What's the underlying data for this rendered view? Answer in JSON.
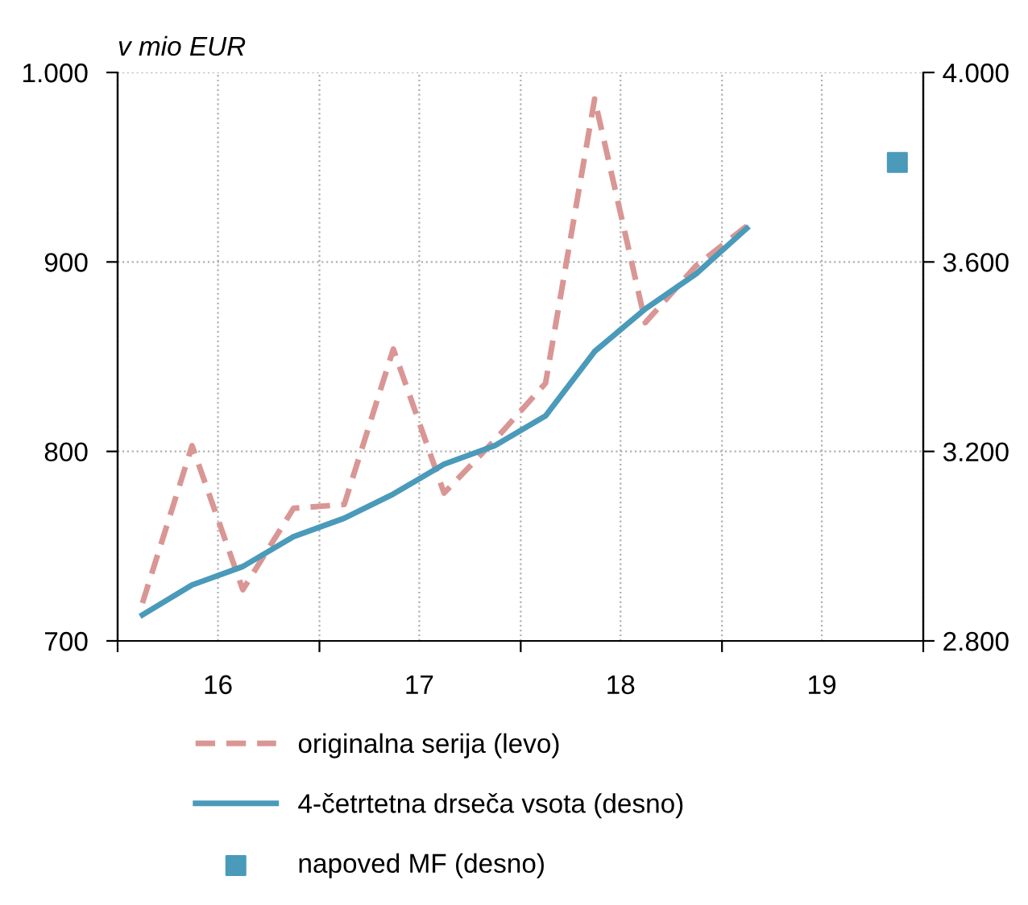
{
  "chart_data": {
    "type": "line",
    "ylabel": "v mio EUR",
    "x": [
      "2016-02-15",
      "2016-05-15",
      "2016-08-15",
      "2016-11-15",
      "2017-02-15",
      "2017-05-15",
      "2017-08-15",
      "2017-11-15",
      "2018-02-15",
      "2018-05-15",
      "2018-08-15",
      "2018-11-15",
      "2019-02-15"
    ],
    "series": [
      {
        "name": "originalna serija (levo)",
        "color": "#d99694",
        "line_style": "dashed",
        "values": [
          720,
          803,
          727,
          770,
          772,
          854,
          778,
          806,
          836,
          986,
          868,
          898,
          919
        ]
      },
      {
        "name": "4-četrtetna drseča vsota (desno)",
        "color": "#4a9aba",
        "axis": "y2",
        "line_style": "solid",
        "values": [
          2855,
          2918,
          2957,
          3020,
          3059,
          3110,
          3173,
          3212,
          3275,
          3411,
          3501,
          3575,
          3671
        ]
      },
      {
        "name": "napoved MF (desno)",
        "type": "scatter",
        "marker": "square",
        "color": "#4a9aba",
        "axis": "y2",
        "x": [
          "2019-11-15"
        ],
        "values": [
          3810
        ]
      }
    ],
    "xlim": [
      "2016-01-01",
      "2020-01-01"
    ],
    "xticks": [
      {
        "value": "2016-01-01",
        "label": null
      },
      {
        "value": "2016-07-01",
        "label": "16"
      },
      {
        "value": "2017-01-01",
        "label": null
      },
      {
        "value": "2017-07-01",
        "label": "17"
      },
      {
        "value": "2018-01-01",
        "label": null
      },
      {
        "value": "2018-07-01",
        "label": "18"
      },
      {
        "value": "2019-01-01",
        "label": null
      },
      {
        "value": "2019-07-01",
        "label": "19"
      },
      {
        "value": "2020-01-01",
        "label": null
      }
    ],
    "ylim": [
      700,
      1000
    ],
    "yticks": [
      700,
      800,
      900,
      {
        "value": 1000,
        "label": "1.000"
      }
    ],
    "y2lim": [
      2800,
      4000
    ],
    "y2ticks": [
      {
        "value": 2800,
        "label": "2.800"
      },
      {
        "value": 3200,
        "label": "3.200"
      },
      {
        "value": 3600,
        "label": "3.600"
      },
      {
        "value": 4000,
        "label": "4.000"
      }
    ],
    "grid": true,
    "legend": "bottom"
  }
}
